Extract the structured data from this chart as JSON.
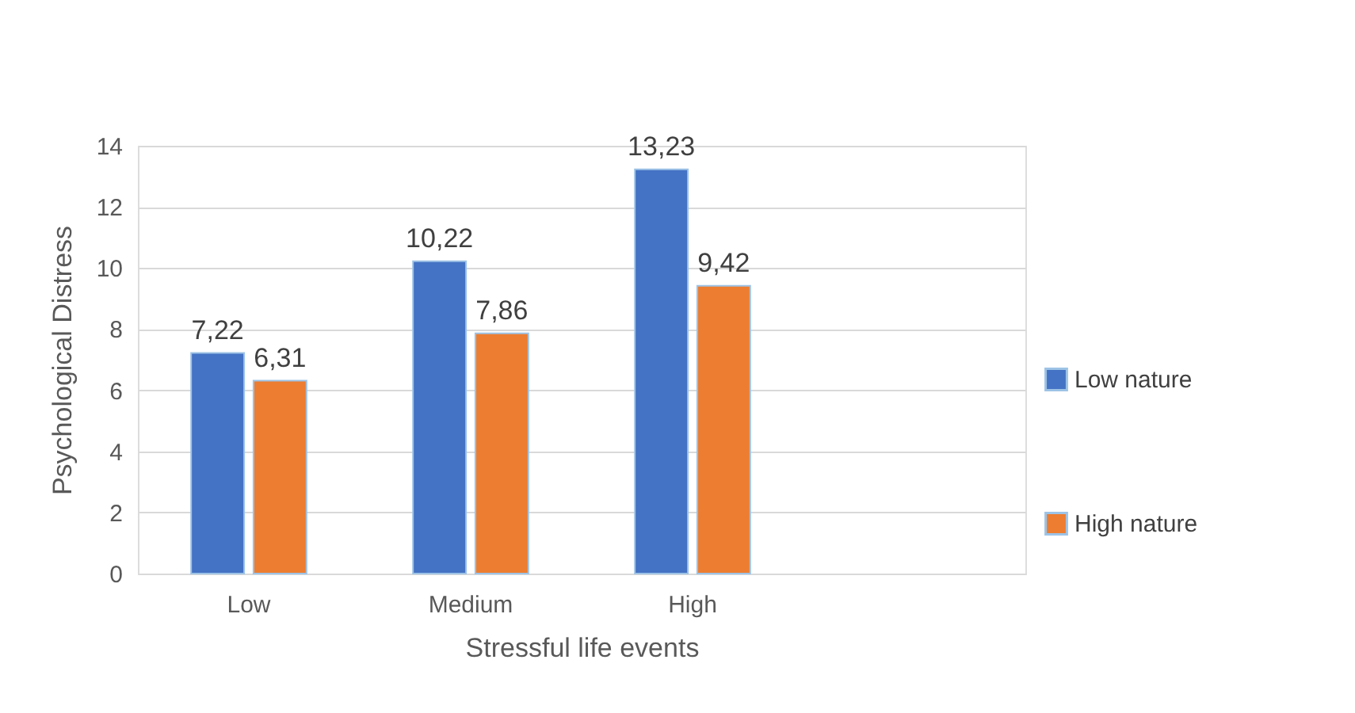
{
  "chart_data": {
    "type": "bar",
    "xlabel": "Stressful life events",
    "ylabel": "Psychological Distress",
    "categories": [
      "Low",
      "Medium",
      "High",
      null
    ],
    "series": [
      {
        "name": "Low nature",
        "color": "#4472c4",
        "values": [
          7.22,
          10.22,
          13.23,
          null
        ],
        "value_labels": [
          "7,22",
          "10,22",
          "13,23",
          null
        ]
      },
      {
        "name": "High nature",
        "color": "#ed7d31",
        "values": [
          6.31,
          7.86,
          9.42,
          null
        ],
        "value_labels": [
          "6,31",
          "7,86",
          "9,42",
          null
        ]
      }
    ],
    "ylim": [
      0,
      14
    ],
    "yticks": [
      0,
      2,
      4,
      6,
      8,
      10,
      12,
      14
    ],
    "grid": "y",
    "legend": "right"
  }
}
